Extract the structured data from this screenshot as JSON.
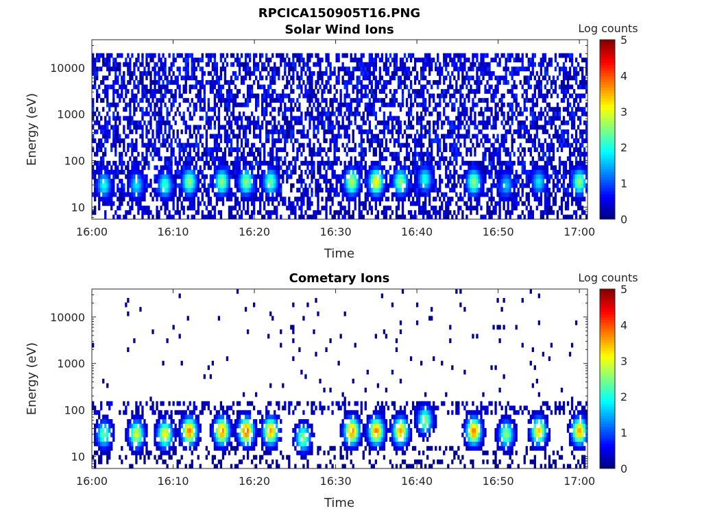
{
  "figure_title": "RPCICA150905T16.PNG",
  "colorbar": {
    "label": "Log counts",
    "ticks": [
      "0",
      "1",
      "2",
      "3",
      "4",
      "5"
    ],
    "range": [
      0,
      5
    ],
    "colormap": "jet"
  },
  "chart_data": [
    {
      "type": "heatmap",
      "title": "Solar Wind Ions",
      "xlabel": "Time",
      "ylabel": "Energy (eV)",
      "x_ticks": [
        "16:00",
        "16:10",
        "16:20",
        "16:30",
        "16:40",
        "16:50",
        "17:00"
      ],
      "y_ticks": [
        "10",
        "100",
        "1000",
        "10000"
      ],
      "y_scale": "log",
      "ylim": [
        5.5,
        40000
      ],
      "xlim": [
        "16:00",
        "17:01"
      ],
      "baseline": "broad low-level counts (log ~0-1) across 20 eV - 20000 eV",
      "bursts": [
        {
          "time": "16:01.5",
          "energy_eV": 30,
          "log_counts": 2.0
        },
        {
          "time": "16:05.5",
          "energy_eV": 30,
          "log_counts": 1.8
        },
        {
          "time": "16:09",
          "energy_eV": 30,
          "log_counts": 2.2
        },
        {
          "time": "16:12",
          "energy_eV": 35,
          "log_counts": 2.6
        },
        {
          "time": "16:16",
          "energy_eV": 35,
          "log_counts": 2.6
        },
        {
          "time": "16:19",
          "energy_eV": 35,
          "log_counts": 2.6
        },
        {
          "time": "16:22",
          "energy_eV": 35,
          "log_counts": 2.4
        },
        {
          "time": "16:32",
          "energy_eV": 35,
          "log_counts": 2.8
        },
        {
          "time": "16:35",
          "energy_eV": 35,
          "log_counts": 3.2
        },
        {
          "time": "16:38",
          "energy_eV": 35,
          "log_counts": 2.6
        },
        {
          "time": "16:41",
          "energy_eV": 40,
          "log_counts": 2.0
        },
        {
          "time": "16:47",
          "energy_eV": 35,
          "log_counts": 2.6
        },
        {
          "time": "16:51",
          "energy_eV": 30,
          "log_counts": 1.6
        },
        {
          "time": "16:55",
          "energy_eV": 35,
          "log_counts": 1.8
        },
        {
          "time": "17:00",
          "energy_eV": 35,
          "log_counts": 2.6
        }
      ]
    },
    {
      "type": "heatmap",
      "title": "Cometary Ions",
      "xlabel": "Time",
      "ylabel": "Energy (eV)",
      "x_ticks": [
        "16:00",
        "16:10",
        "16:20",
        "16:30",
        "16:40",
        "16:50",
        "17:00"
      ],
      "y_ticks": [
        "10",
        "100",
        "1000",
        "10000"
      ],
      "y_scale": "log",
      "ylim": [
        5.5,
        40000
      ],
      "xlim": [
        "16:00",
        "17:01"
      ],
      "baseline": "sparse isolated counts above 100 eV",
      "bursts": [
        {
          "time": "16:01.5",
          "energy_eV": 30,
          "log_counts": 2.4
        },
        {
          "time": "16:05.5",
          "energy_eV": 30,
          "log_counts": 3.0
        },
        {
          "time": "16:09",
          "energy_eV": 30,
          "log_counts": 3.2
        },
        {
          "time": "16:12",
          "energy_eV": 35,
          "log_counts": 3.8
        },
        {
          "time": "16:16",
          "energy_eV": 35,
          "log_counts": 3.8
        },
        {
          "time": "16:19",
          "energy_eV": 35,
          "log_counts": 4.0
        },
        {
          "time": "16:22",
          "energy_eV": 35,
          "log_counts": 3.6
        },
        {
          "time": "16:26",
          "energy_eV": 25,
          "log_counts": 2.6
        },
        {
          "time": "16:32",
          "energy_eV": 35,
          "log_counts": 3.8
        },
        {
          "time": "16:35",
          "energy_eV": 35,
          "log_counts": 3.8
        },
        {
          "time": "16:38",
          "energy_eV": 35,
          "log_counts": 3.6
        },
        {
          "time": "16:41",
          "energy_eV": 60,
          "log_counts": 2.6
        },
        {
          "time": "16:47",
          "energy_eV": 35,
          "log_counts": 3.8
        },
        {
          "time": "16:51",
          "energy_eV": 30,
          "log_counts": 2.6
        },
        {
          "time": "16:55",
          "energy_eV": 35,
          "log_counts": 3.4
        },
        {
          "time": "17:00",
          "energy_eV": 35,
          "log_counts": 3.6
        }
      ]
    }
  ]
}
